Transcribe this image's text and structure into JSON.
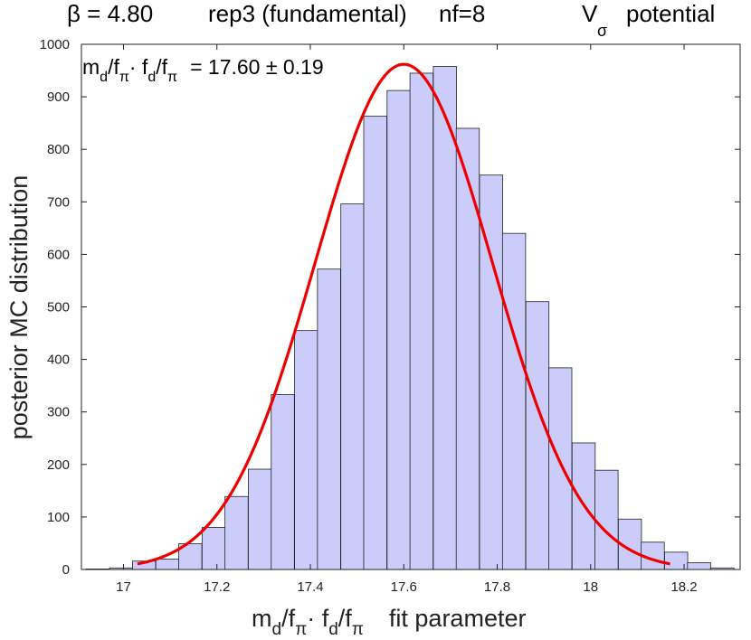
{
  "chart_data": {
    "type": "bar",
    "title": {
      "beta": "β = 4.80",
      "rep": "rep3 (fundamental)",
      "nf": "nf=8",
      "potential_V": "V",
      "potential_sub": "σ",
      "potential_word": "potential"
    },
    "annotation": {
      "m": "m",
      "d1": "d",
      "slash1": "/f",
      "pi1": "π",
      "dot": "· f",
      "d2": "d",
      "slash2": "/f",
      "pi2": "π",
      "value": "= 17.60 ± 0.19"
    },
    "xlabel": {
      "m": "m",
      "d1": "d",
      "slash1": "/f",
      "pi1": "π",
      "dot": "· f",
      "d2": "d",
      "slash2": "/f",
      "pi2": "π",
      "rest": "fit parameter"
    },
    "ylabel": "posterior MC distribution",
    "xlim": [
      16.91,
      18.32
    ],
    "ylim": [
      0,
      1000
    ],
    "xticks": [
      17,
      17.2,
      17.4,
      17.6,
      17.8,
      18,
      18.2
    ],
    "xtick_labels": [
      "17",
      "17.2",
      "17.4",
      "17.6",
      "17.8",
      "18",
      "18.2"
    ],
    "yticks": [
      0,
      100,
      200,
      300,
      400,
      500,
      600,
      700,
      800,
      900,
      1000
    ],
    "ytick_labels": [
      "0",
      "100",
      "200",
      "300",
      "400",
      "500",
      "600",
      "700",
      "800",
      "900",
      "1000"
    ],
    "bin_width": 0.0495,
    "bin_centers": [
      16.945,
      16.995,
      17.044,
      17.094,
      17.143,
      17.193,
      17.242,
      17.292,
      17.341,
      17.391,
      17.44,
      17.49,
      17.539,
      17.589,
      17.638,
      17.688,
      17.737,
      17.787,
      17.836,
      17.886,
      17.935,
      17.985,
      18.034,
      18.084,
      18.133,
      18.183,
      18.232,
      18.282
    ],
    "values": [
      1,
      3,
      16,
      20,
      49,
      80,
      139,
      191,
      333,
      455,
      572,
      696,
      863,
      912,
      945,
      958,
      840,
      751,
      640,
      510,
      384,
      241,
      189,
      96,
      52,
      33,
      13,
      3
    ],
    "fit_curve": {
      "type": "gaussian",
      "mean": 17.6,
      "sigma": 0.19,
      "peak": 962,
      "x_range": [
        17.03,
        18.17
      ]
    },
    "colors": {
      "bar_fill": "#ccccfa",
      "bar_edge": "#222222",
      "fit": "#ee0000",
      "axes": "#222222"
    },
    "grid": false
  }
}
